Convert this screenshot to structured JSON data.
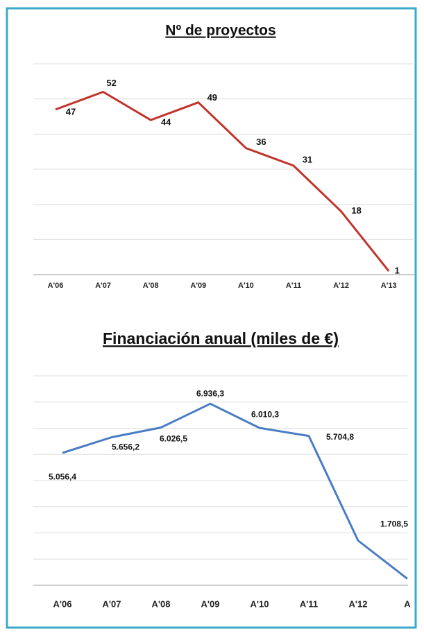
{
  "chart_data": [
    {
      "type": "line",
      "title": "Nº de proyectos",
      "categories": [
        "A'06",
        "A'07",
        "A'08",
        "A'09",
        "A'10",
        "A'11",
        "A'12",
        "A'13"
      ],
      "series": [
        {
          "color": "#c0332b",
          "values": [
            47,
            52,
            44,
            49,
            36,
            31,
            18,
            1
          ]
        }
      ],
      "ylim": [
        0,
        60
      ],
      "yticks": [
        0,
        10,
        20,
        30,
        40,
        50,
        60
      ],
      "grid": true
    },
    {
      "type": "line",
      "title": "Financiación anual (miles de €)",
      "categories": [
        "A'06",
        "A'07",
        "A'08",
        "A'09",
        "A'10",
        "A'11",
        "A'12",
        "A"
      ],
      "series": [
        {
          "color": "#4a7cc4",
          "values": [
            5056.4,
            5656.2,
            6026.5,
            6936.3,
            6010.3,
            5704.8,
            1708.5,
            250
          ],
          "value_labels": [
            "5.056,4",
            "5.656,2",
            "6.026,5",
            "6.936,3",
            "6.010,3",
            "5.704,8",
            "1.708,5",
            null
          ]
        }
      ],
      "ylim": [
        0,
        8000
      ],
      "yticks": [
        0,
        1000,
        2000,
        3000,
        4000,
        5000,
        6000,
        7000,
        8000
      ],
      "grid": true
    }
  ]
}
